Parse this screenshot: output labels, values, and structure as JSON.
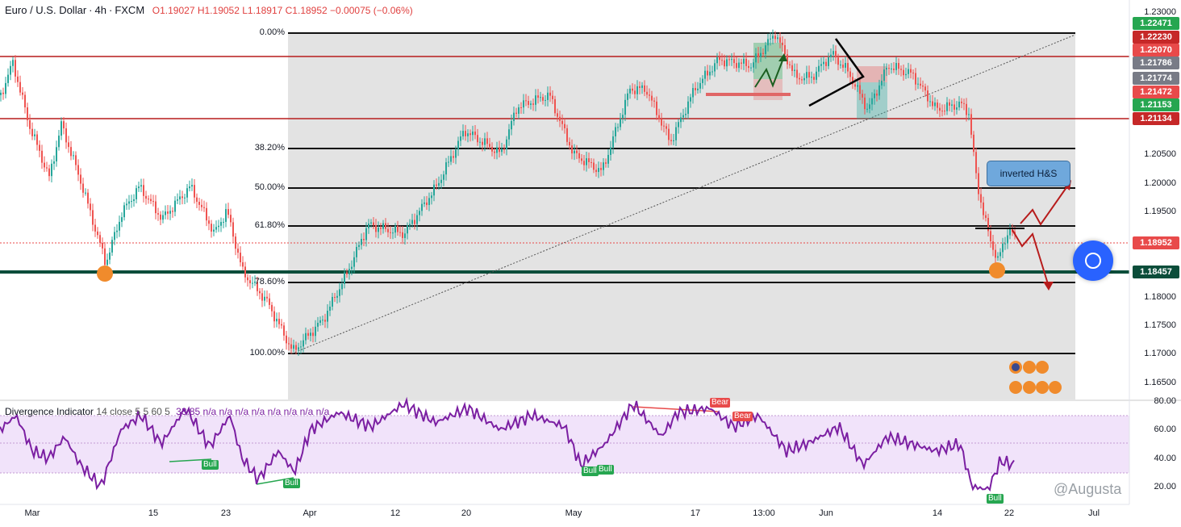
{
  "header": {
    "symbol": "Euro / U.S. Dollar",
    "interval": "4h",
    "exchange": "FXCM",
    "open": "O1.19027",
    "high": "H1.19052",
    "low": "L1.18917",
    "close": "C1.18952",
    "change": "−0.00075 (−0.06%)"
  },
  "fib_levels": [
    {
      "label": "0.00%",
      "price": 1.2245
    },
    {
      "label": "38.20%",
      "price": 1.205
    },
    {
      "label": "50.00%",
      "price": 1.1983
    },
    {
      "label": "61.80%",
      "price": 1.1918
    },
    {
      "label": "78.60%",
      "price": 1.1822
    },
    {
      "label": "100.00%",
      "price": 1.1702
    }
  ],
  "price_axis": {
    "ticks": [
      "1.23000",
      "1.20500",
      "1.20000",
      "1.19500",
      "1.18000",
      "1.17500",
      "1.17000",
      "1.16500"
    ],
    "labels": [
      {
        "value": "1.22471",
        "color": "#26a650"
      },
      {
        "value": "1.22230",
        "color": "#c62828"
      },
      {
        "value": "1.22070",
        "color": "#e84a4a"
      },
      {
        "value": "1.21786",
        "color": "#787b86"
      },
      {
        "value": "1.21774",
        "color": "#787b86"
      },
      {
        "value": "1.21472",
        "color": "#e84a4a"
      },
      {
        "value": "1.21153",
        "color": "#26a650"
      },
      {
        "value": "1.21134",
        "color": "#c62828"
      },
      {
        "value": "1.18952",
        "color": "#e84a4a"
      },
      {
        "value": "1.18457",
        "color": "#0b4d3a"
      }
    ]
  },
  "annotation": {
    "text": "inverted H&S"
  },
  "indicator": {
    "name": "Divergence Indicator",
    "params": "14 close 5 5 60 5",
    "values": "33.85  n/a  n/a  n/a  n/a  n/a  n/a  n/a  n/a",
    "ticks": [
      "80.00",
      "60.00",
      "40.00",
      "20.00"
    ],
    "tags": [
      {
        "text": "Bull",
        "kind": "bull"
      },
      {
        "text": "Bull",
        "kind": "bull"
      },
      {
        "text": "Bull",
        "kind": "bull"
      },
      {
        "text": "Bull",
        "kind": "bull"
      },
      {
        "text": "Bull",
        "kind": "bull"
      },
      {
        "text": "Bear",
        "kind": "bear"
      },
      {
        "text": "Bear",
        "kind": "bear"
      }
    ]
  },
  "time_axis": [
    "Mar",
    "15",
    "23",
    "Apr",
    "12",
    "20",
    "May",
    "17",
    "13:00",
    "Jun",
    "14",
    "22",
    "Jul"
  ],
  "watermark": "@Augusta",
  "colors": {
    "up": "#26a69a",
    "down": "#ef5350",
    "rsi": "#7b1fa2",
    "support": "#0b4d3a",
    "resistance": "#b71c1c"
  }
}
